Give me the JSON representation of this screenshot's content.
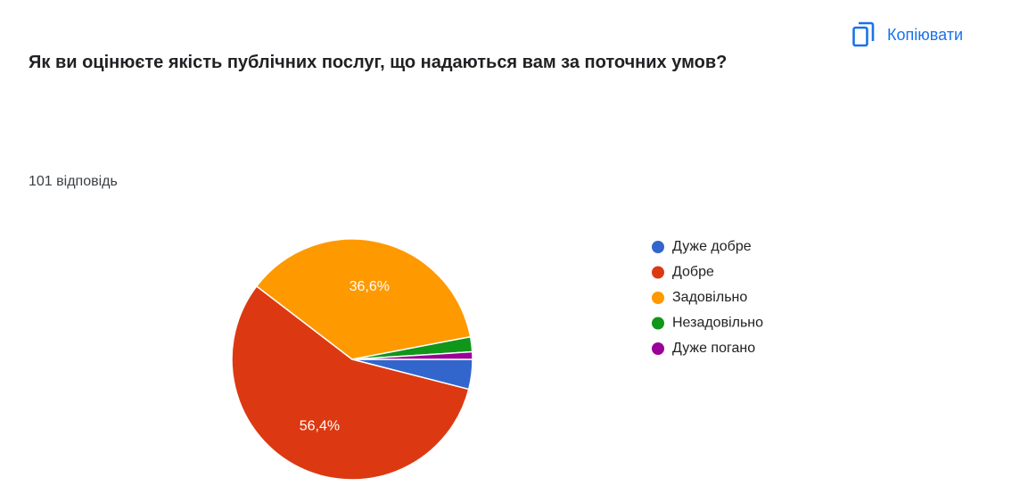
{
  "header": {
    "title": "Як ви оцінюєте якість публічних послуг, що надаються вам за поточних умов?",
    "response_count": "101 відповідь",
    "copy_button": "Копіювати"
  },
  "chart_data": {
    "type": "pie",
    "categories": [
      "Дуже добре",
      "Добре",
      "Задовільно",
      "Незадовільно",
      "Дуже погано"
    ],
    "values": [
      4.0,
      56.4,
      36.6,
      2.0,
      1.0
    ],
    "value_labels": [
      null,
      "56,4%",
      "36,6%",
      null,
      null
    ],
    "colors": [
      "#3366cc",
      "#dc3912",
      "#ff9900",
      "#109618",
      "#990099"
    ],
    "legend": "right"
  }
}
